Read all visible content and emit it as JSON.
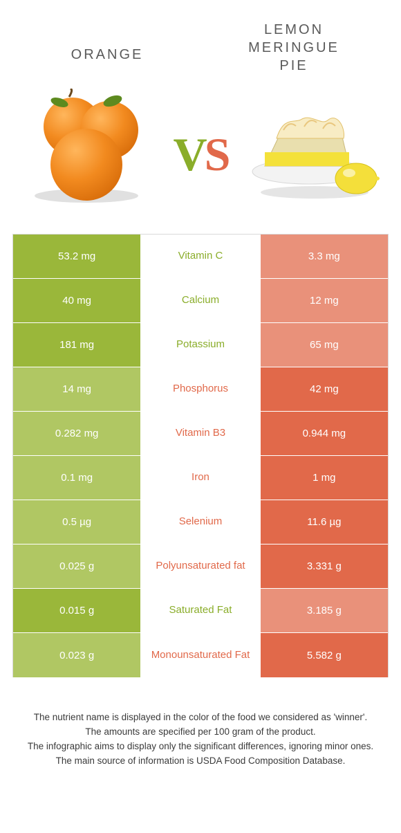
{
  "colors": {
    "left": "#9ab73a",
    "right": "#e1694a",
    "left_dim": "#b0c763",
    "right_dim": "#e9917a",
    "mid_left_text": "#8aad2a",
    "mid_right_text": "#e1694a",
    "title_text": "#5a5a5a",
    "foot_text": "#3a3a3a"
  },
  "header": {
    "left_title": "ORANGE",
    "right_title_l1": "LEMON",
    "right_title_l2": "MERINGUE",
    "right_title_l3": "PIE"
  },
  "vs": {
    "v": "V",
    "s": "S"
  },
  "rows": [
    {
      "left": "53.2 mg",
      "mid": "Vitamin C",
      "right": "3.3 mg",
      "winner": "left"
    },
    {
      "left": "40 mg",
      "mid": "Calcium",
      "right": "12 mg",
      "winner": "left"
    },
    {
      "left": "181 mg",
      "mid": "Potassium",
      "right": "65 mg",
      "winner": "left"
    },
    {
      "left": "14 mg",
      "mid": "Phosphorus",
      "right": "42 mg",
      "winner": "right"
    },
    {
      "left": "0.282 mg",
      "mid": "Vitamin B3",
      "right": "0.944 mg",
      "winner": "right"
    },
    {
      "left": "0.1 mg",
      "mid": "Iron",
      "right": "1 mg",
      "winner": "right"
    },
    {
      "left": "0.5 µg",
      "mid": "Selenium",
      "right": "11.6 µg",
      "winner": "right"
    },
    {
      "left": "0.025 g",
      "mid": "Polyunsaturated fat",
      "right": "3.331 g",
      "winner": "right"
    },
    {
      "left": "0.015 g",
      "mid": "Saturated Fat",
      "right": "3.185 g",
      "winner": "left"
    },
    {
      "left": "0.023 g",
      "mid": "Monounsaturated Fat",
      "right": "5.582 g",
      "winner": "right"
    }
  ],
  "footnotes": [
    "The nutrient name is displayed in the color of the food we considered as 'winner'.",
    "The amounts are specified per 100 gram of the product.",
    "The infographic aims to display only the significant differences, ignoring minor ones.",
    "The main source of information is USDA Food Composition Database."
  ]
}
